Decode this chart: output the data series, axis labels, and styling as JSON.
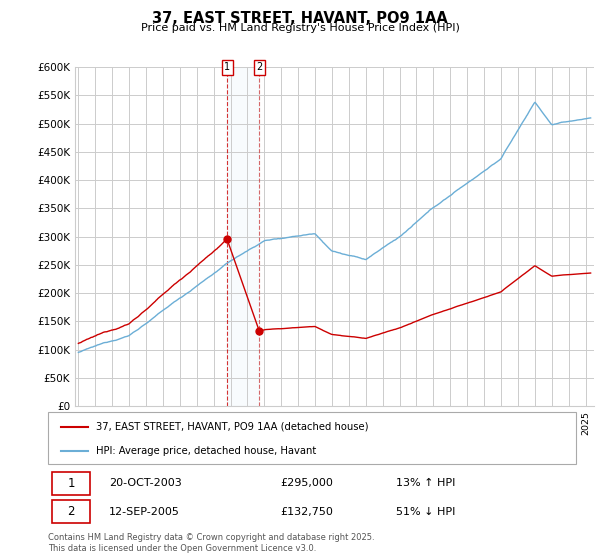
{
  "title": "37, EAST STREET, HAVANT, PO9 1AA",
  "subtitle": "Price paid vs. HM Land Registry's House Price Index (HPI)",
  "ylabel_ticks": [
    "£0",
    "£50K",
    "£100K",
    "£150K",
    "£200K",
    "£250K",
    "£300K",
    "£350K",
    "£400K",
    "£450K",
    "£500K",
    "£550K",
    "£600K"
  ],
  "y_values": [
    0,
    50000,
    100000,
    150000,
    200000,
    250000,
    300000,
    350000,
    400000,
    450000,
    500000,
    550000,
    600000
  ],
  "x_start_year": 1995,
  "x_end_year": 2025,
  "t1_year": 2003.8,
  "t1_price": 295000,
  "t1_date": "20-OCT-2003",
  "t1_hpi": "13% ↑ HPI",
  "t2_year": 2005.7,
  "t2_price": 132750,
  "t2_date": "12-SEP-2005",
  "t2_hpi": "51% ↓ HPI",
  "legend_line1": "37, EAST STREET, HAVANT, PO9 1AA (detached house)",
  "legend_line2": "HPI: Average price, detached house, Havant",
  "footer": "Contains HM Land Registry data © Crown copyright and database right 2025.\nThis data is licensed under the Open Government Licence v3.0.",
  "line_color_red": "#cc0000",
  "line_color_blue": "#6baed6",
  "shade_color": "#d6e8f7",
  "grid_color": "#cccccc",
  "background_color": "#ffffff"
}
